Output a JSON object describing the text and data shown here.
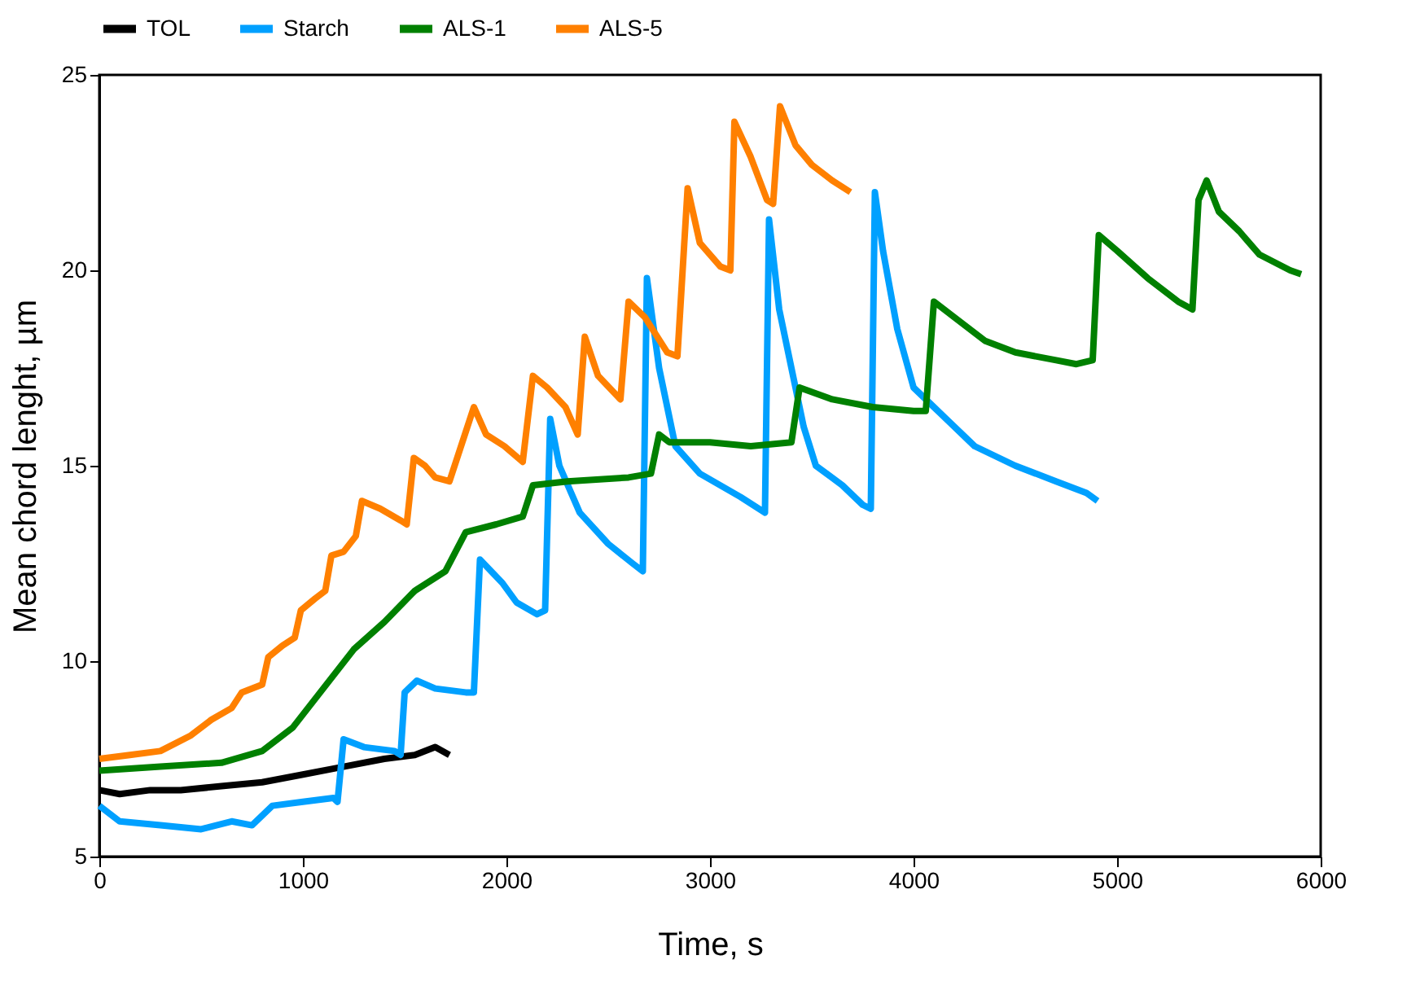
{
  "chart_data": {
    "type": "line",
    "xlabel": "Time, s",
    "ylabel": "Mean chord lenght, µm",
    "xlim": [
      0,
      6000
    ],
    "xticks": [
      0,
      1000,
      2000,
      3000,
      4000,
      5000,
      6000
    ],
    "ylim": [
      5,
      25
    ],
    "yticks": [
      5,
      10,
      15,
      20,
      25
    ],
    "grid": false,
    "legend": "top",
    "marker": "none",
    "line_style": "solid",
    "series": [
      {
        "name": "TOL",
        "color": "#000000",
        "x": [
          0,
          100,
          250,
          400,
          600,
          800,
          1000,
          1200,
          1400,
          1550,
          1650,
          1720
        ],
        "values": [
          6.7,
          6.6,
          6.7,
          6.7,
          6.8,
          6.9,
          7.1,
          7.3,
          7.5,
          7.6,
          7.8,
          7.6
        ]
      },
      {
        "name": "Starch",
        "color": "#00a0ff",
        "x": [
          0,
          100,
          300,
          500,
          650,
          750,
          850,
          1000,
          1150,
          1170,
          1200,
          1300,
          1450,
          1480,
          1500,
          1560,
          1650,
          1800,
          1840,
          1870,
          1980,
          2050,
          2150,
          2190,
          2215,
          2260,
          2360,
          2500,
          2620,
          2670,
          2690,
          2750,
          2830,
          2950,
          3150,
          3270,
          3290,
          3340,
          3460,
          3520,
          3650,
          3750,
          3790,
          3810,
          3850,
          3920,
          4000,
          4100,
          4300,
          4500,
          4700,
          4850,
          4904
        ],
        "values": [
          6.3,
          5.9,
          5.8,
          5.7,
          5.9,
          5.8,
          6.3,
          6.4,
          6.5,
          6.4,
          8.0,
          7.8,
          7.7,
          7.6,
          9.2,
          9.5,
          9.3,
          9.2,
          9.2,
          12.6,
          12.0,
          11.5,
          11.2,
          11.3,
          16.2,
          15.0,
          13.8,
          13.0,
          12.5,
          12.3,
          19.8,
          17.5,
          15.5,
          14.8,
          14.2,
          13.8,
          21.3,
          19.0,
          16.0,
          15.0,
          14.5,
          14.0,
          13.9,
          22.0,
          20.5,
          18.5,
          17.0,
          16.5,
          15.5,
          15.0,
          14.6,
          14.3,
          14.1
        ]
      },
      {
        "name": "ALS-1",
        "color": "#008000",
        "x": [
          0,
          300,
          600,
          800,
          950,
          1100,
          1250,
          1400,
          1550,
          1700,
          1800,
          1950,
          2080,
          2130,
          2300,
          2600,
          2710,
          2750,
          2800,
          3000,
          3200,
          3400,
          3440,
          3600,
          3800,
          4000,
          4060,
          4100,
          4200,
          4350,
          4500,
          4700,
          4800,
          4880,
          4910,
          5000,
          5150,
          5300,
          5370,
          5400,
          5440,
          5500,
          5600,
          5700,
          5850,
          5904
        ],
        "values": [
          7.2,
          7.3,
          7.4,
          7.7,
          8.3,
          9.3,
          10.3,
          11.0,
          11.8,
          12.3,
          13.3,
          13.5,
          13.7,
          14.5,
          14.6,
          14.7,
          14.8,
          15.8,
          15.6,
          15.6,
          15.5,
          15.6,
          17.0,
          16.7,
          16.5,
          16.4,
          16.4,
          19.2,
          18.8,
          18.2,
          17.9,
          17.7,
          17.6,
          17.7,
          20.9,
          20.5,
          19.8,
          19.2,
          19.0,
          21.8,
          22.3,
          21.5,
          21.0,
          20.4,
          20.0,
          19.9
        ]
      },
      {
        "name": "ALS-5",
        "color": "#ff8000",
        "x": [
          0,
          150,
          300,
          450,
          550,
          650,
          700,
          800,
          830,
          900,
          960,
          990,
          1060,
          1110,
          1140,
          1200,
          1260,
          1290,
          1380,
          1480,
          1510,
          1545,
          1600,
          1650,
          1720,
          1840,
          1900,
          1990,
          2080,
          2130,
          2200,
          2290,
          2350,
          2385,
          2450,
          2560,
          2600,
          2680,
          2790,
          2840,
          2890,
          2950,
          3050,
          3100,
          3120,
          3200,
          3280,
          3310,
          3344,
          3420,
          3500,
          3600,
          3690
        ],
        "values": [
          7.5,
          7.6,
          7.7,
          8.1,
          8.5,
          8.8,
          9.2,
          9.4,
          10.1,
          10.4,
          10.6,
          11.3,
          11.6,
          11.8,
          12.7,
          12.8,
          13.2,
          14.1,
          13.9,
          13.6,
          13.5,
          15.2,
          15.0,
          14.7,
          14.6,
          16.5,
          15.8,
          15.5,
          15.1,
          17.3,
          17.0,
          16.5,
          15.8,
          18.3,
          17.3,
          16.7,
          19.2,
          18.8,
          17.9,
          17.8,
          22.1,
          20.7,
          20.1,
          20.0,
          23.8,
          22.9,
          21.8,
          21.7,
          24.2,
          23.2,
          22.7,
          22.3,
          22.0
        ]
      }
    ]
  }
}
